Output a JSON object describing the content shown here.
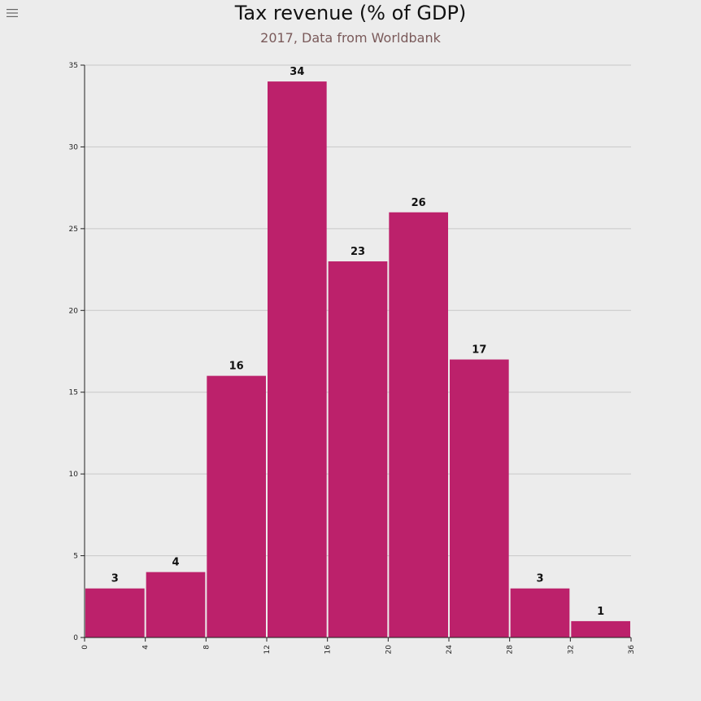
{
  "header": {
    "title": "Tax revenue (% of GDP)",
    "subtitle": "2017, Data from Worldbank",
    "menu_icon": "hamburger-menu-icon"
  },
  "colors": {
    "bar": "#bc216b",
    "grid": "#c8c8c8",
    "axis": "#222222",
    "background": "#ececec"
  },
  "chart_data": {
    "type": "bar",
    "title": "Tax revenue (% of GDP)",
    "subtitle": "2017, Data from Worldbank",
    "xlabel": "",
    "ylabel": "",
    "bins": [
      [
        0,
        4
      ],
      [
        4,
        8
      ],
      [
        8,
        12
      ],
      [
        12,
        16
      ],
      [
        16,
        20
      ],
      [
        20,
        24
      ],
      [
        24,
        28
      ],
      [
        28,
        32
      ],
      [
        32,
        36
      ]
    ],
    "values": [
      3,
      4,
      16,
      34,
      23,
      26,
      17,
      3,
      1
    ],
    "x_ticks": [
      0,
      4,
      8,
      12,
      16,
      20,
      24,
      28,
      32,
      36
    ],
    "y_ticks": [
      0,
      5,
      10,
      15,
      20,
      25,
      30,
      35
    ],
    "xlim": [
      0,
      36
    ],
    "ylim": [
      0,
      35
    ],
    "grid": true,
    "legend": "none"
  }
}
